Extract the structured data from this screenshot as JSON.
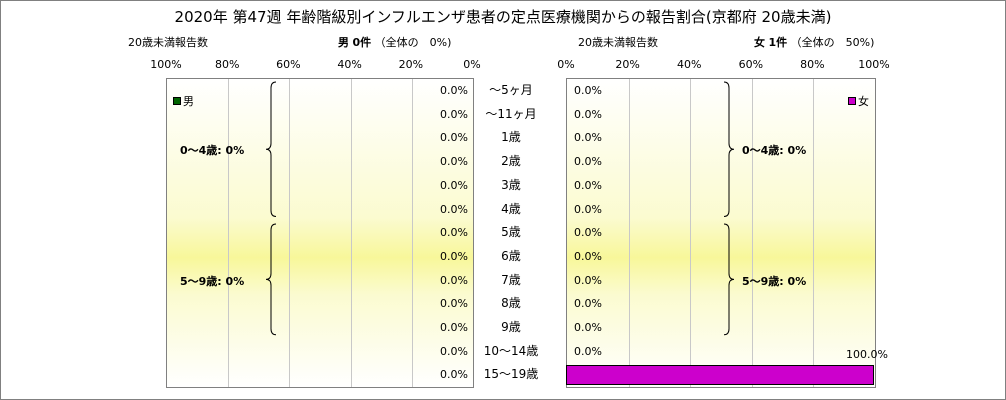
{
  "title": "2020年 第47週 年齢階級別インフルエンザ患者の定点医療機関からの報告割合(京都府 20歳未満)",
  "left_header": {
    "label": "20歳未満報告数",
    "sex": "男",
    "count": "0件",
    "share": "（全体の　0%)"
  },
  "right_header": {
    "label": "20歳未満報告数",
    "sex": "女",
    "count": "1件",
    "share": "（全体の　50%)"
  },
  "colors": {
    "male": "#006400",
    "female": "#cc00cc",
    "panel_band": "#f8f79a",
    "frame": "#808080"
  },
  "chart_data": {
    "type": "bar",
    "title": "2020年 第47週 年齢階級別インフルエンザ患者の定点医療機関からの報告割合(京都府 20歳未満)",
    "categories": [
      "～5ヶ月",
      "～11ヶ月",
      "1歳",
      "2歳",
      "3歳",
      "4歳",
      "5歳",
      "6歳",
      "7歳",
      "8歳",
      "9歳",
      "10～14歳",
      "15～19歳"
    ],
    "left_axis_ticks": [
      "100%",
      "80%",
      "60%",
      "40%",
      "20%",
      "0%"
    ],
    "right_axis_ticks": [
      "0%",
      "20%",
      "40%",
      "60%",
      "80%",
      "100%"
    ],
    "xlim": [
      0,
      100
    ],
    "grid": true,
    "series": [
      {
        "name": "男",
        "side": "left",
        "values": [
          0,
          0,
          0,
          0,
          0,
          0,
          0,
          0,
          0,
          0,
          0,
          0,
          0
        ],
        "labels": [
          "0.0%",
          "0.0%",
          "0.0%",
          "0.0%",
          "0.0%",
          "0.0%",
          "0.0%",
          "0.0%",
          "0.0%",
          "0.0%",
          "0.0%",
          "0.0%",
          "0.0%"
        ]
      },
      {
        "name": "女",
        "side": "right",
        "values": [
          0,
          0,
          0,
          0,
          0,
          0,
          0,
          0,
          0,
          0,
          0,
          0,
          100
        ],
        "labels": [
          "0.0%",
          "0.0%",
          "0.0%",
          "0.0%",
          "0.0%",
          "0.0%",
          "0.0%",
          "0.0%",
          "0.0%",
          "0.0%",
          "0.0%",
          "0.0%",
          "100.0%"
        ]
      }
    ],
    "groups": [
      {
        "label": "0～4歳: 0%",
        "from": 0,
        "to": 5
      },
      {
        "label": "5～9歳: 0%",
        "from": 6,
        "to": 10
      }
    ],
    "legend_left": {
      "text": "男",
      "position": "top-left"
    },
    "legend_right": {
      "text": "女",
      "position": "top-right"
    }
  }
}
